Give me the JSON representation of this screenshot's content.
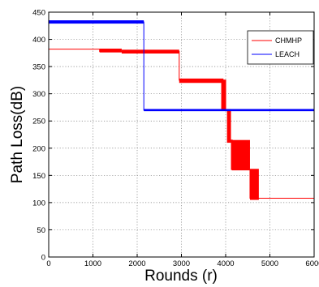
{
  "chart_data": {
    "type": "line",
    "title": "",
    "xlabel": "Rounds (r)",
    "ylabel": "Path Loss(dB)",
    "xlim": [
      0,
      6000
    ],
    "ylim": [
      0,
      450
    ],
    "xticks": [
      0,
      1000,
      2000,
      3000,
      4000,
      5000,
      6000
    ],
    "yticks": [
      0,
      50,
      100,
      150,
      200,
      250,
      300,
      350,
      400,
      450
    ],
    "grid": true,
    "legend_position": "top-right",
    "series": [
      {
        "name": "CHMHP",
        "color": "#ff0000",
        "line_width": 1,
        "points": [
          [
            0,
            382
          ],
          [
            1150,
            382
          ],
          [
            1150,
            378
          ],
          [
            2950,
            378
          ],
          [
            2950,
            325
          ],
          [
            3950,
            325
          ],
          [
            3950,
            270
          ],
          [
            4050,
            270
          ],
          [
            4050,
            215
          ],
          [
            4150,
            215
          ],
          [
            4150,
            160
          ],
          [
            4550,
            160
          ],
          [
            4550,
            108
          ],
          [
            6000,
            108
          ]
        ],
        "noise_bands": [
          {
            "x": [
              1150,
              1650
            ],
            "y": [
              376,
              383
            ]
          },
          {
            "x": [
              1650,
              2950
            ],
            "y": [
              374,
              381
            ]
          },
          {
            "x": [
              2950,
              3950
            ],
            "y": [
              320,
              328
            ]
          },
          {
            "x": [
              3900,
              4010
            ],
            "y": [
              270,
              326
            ]
          },
          {
            "x": [
              4030,
              4120
            ],
            "y": [
              210,
              272
            ]
          },
          {
            "x": [
              4120,
              4550
            ],
            "y": [
              160,
              215
            ]
          },
          {
            "x": [
              4550,
              4750
            ],
            "y": [
              105,
              162
            ]
          }
        ]
      },
      {
        "name": "LEACH",
        "color": "#0000ff",
        "line_width": 1,
        "points": [
          [
            0,
            432
          ],
          [
            2150,
            432
          ],
          [
            2150,
            270
          ],
          [
            6000,
            270
          ]
        ],
        "noise_bands": [
          {
            "x": [
              0,
              2150
            ],
            "y": [
              429,
              435
            ]
          },
          {
            "x": [
              2150,
              6000
            ],
            "y": [
              268,
              272
            ]
          }
        ]
      }
    ]
  }
}
